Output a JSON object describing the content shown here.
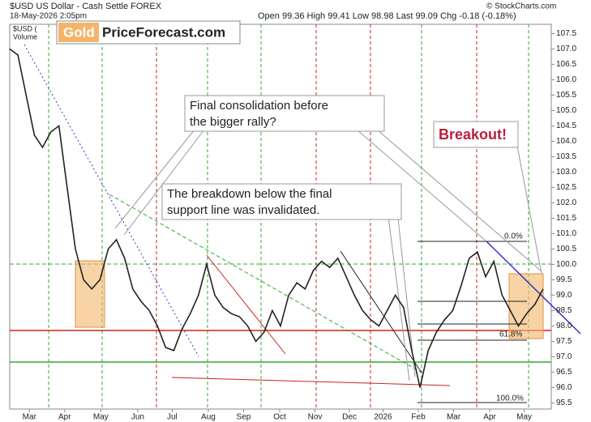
{
  "chart_data": {
    "type": "line",
    "title": "$USD US Dollar - Cash Settle FOREX",
    "subtitle": "18-May-2026 2:05pm",
    "quote": "Open 99.36 High 99.41 Low 98.98 Last 99.09 Chg -0.18 (-0.18%)",
    "source": "© StockCharts.com",
    "legend_symbol": "$USD (",
    "legend_volume": "Volume",
    "logo": [
      "Gold",
      "PriceForecast.com"
    ],
    "annotations": [
      "Final consolidation before",
      "the bigger rally?",
      "The breakdown below the final",
      "support line was invalidated.",
      "Breakout!"
    ],
    "fib_labels": [
      "0.0%",
      "61.8%",
      "100.0%"
    ],
    "color": "#222222",
    "values": [
      107.0,
      106.8,
      105.5,
      104.2,
      103.8,
      104.3,
      104.5,
      102.5,
      100.5,
      99.5,
      99.2,
      99.5,
      100.5,
      100.8,
      100.2,
      99.2,
      98.8,
      98.5,
      98.0,
      97.3,
      97.2,
      97.9,
      98.4,
      99.0,
      100.0,
      99.0,
      98.6,
      98.4,
      98.3,
      98.0,
      97.5,
      97.8,
      98.5,
      98.0,
      99.0,
      99.4,
      99.2,
      99.8,
      100.1,
      99.9,
      100.2,
      99.6,
      99.0,
      98.5,
      98.2,
      98.0,
      98.5,
      99.0,
      98.6,
      97.2,
      96.0,
      97.2,
      97.8,
      98.2,
      98.5,
      99.3,
      100.2,
      100.4,
      99.6,
      100.1,
      99.0,
      98.5,
      98.0,
      98.4,
      98.7,
      99.2
    ],
    "xlim": [
      0,
      66
    ],
    "xticks": [
      {
        "value": 2.4,
        "label": "Mar"
      },
      {
        "value": 6.7,
        "label": "Apr"
      },
      {
        "value": 11.1,
        "label": "May"
      },
      {
        "value": 15.6,
        "label": "Jun"
      },
      {
        "value": 19.8,
        "label": "Jul"
      },
      {
        "value": 24.2,
        "label": "Aug"
      },
      {
        "value": 28.5,
        "label": "Sep"
      },
      {
        "value": 32.9,
        "label": "Oct"
      },
      {
        "value": 37.2,
        "label": "Nov"
      },
      {
        "value": 41.4,
        "label": "Dec"
      },
      {
        "value": 45.5,
        "label": "2026"
      },
      {
        "value": 49.8,
        "label": "Feb"
      },
      {
        "value": 54.1,
        "label": "Mar"
      },
      {
        "value": 58.5,
        "label": "Apr"
      },
      {
        "value": 62.7,
        "label": "May"
      }
    ],
    "ylim": [
      95.3,
      107.8
    ],
    "yticks": [
      95.5,
      {
        "value": 96,
        "label": "96.0"
      },
      96.5,
      {
        "value": 97,
        "label": "97.0"
      },
      97.5,
      {
        "value": 98,
        "label": "98.0"
      },
      98.5,
      {
        "value": 99,
        "label": "99.0"
      },
      99.5,
      {
        "value": 100,
        "label": "100.0"
      },
      100.5,
      {
        "value": 101,
        "label": "101.0"
      },
      101.5,
      {
        "value": 102,
        "label": "102.0"
      },
      102.5,
      {
        "value": 103,
        "label": "103.0"
      },
      103.5,
      {
        "value": 104,
        "label": "104.0"
      },
      104.5,
      {
        "value": 105,
        "label": "105.0"
      },
      105.5,
      {
        "value": 106,
        "label": "106.0"
      },
      106.5,
      {
        "value": 107,
        "label": "107.0"
      },
      107.5
    ]
  }
}
